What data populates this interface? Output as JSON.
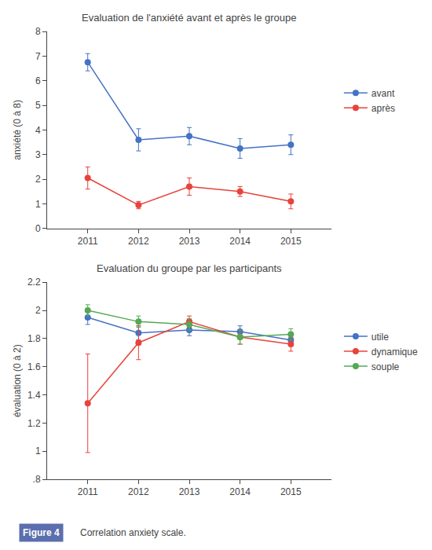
{
  "chart_data": [
    {
      "type": "line",
      "title": "Evaluation de l'anxiété avant et après le groupe",
      "y_label": "anxiété (0 à 8)",
      "x": [
        2011,
        2012,
        2013,
        2014,
        2015
      ],
      "series": [
        {
          "name": "avant",
          "color": "#4472C4",
          "marker": "circle",
          "values": [
            6.75,
            3.6,
            3.75,
            3.25,
            3.4
          ],
          "errors": [
            0.35,
            0.45,
            0.35,
            0.4,
            0.4
          ]
        },
        {
          "name": "après",
          "color": "#E8433A",
          "marker": "circle",
          "values": [
            2.05,
            0.95,
            1.7,
            1.5,
            1.1
          ],
          "errors": [
            0.45,
            0.15,
            0.35,
            0.2,
            0.3
          ]
        }
      ],
      "xlim": [
        2010.2,
        2015.8
      ],
      "xticks": [
        2011,
        2012,
        2013,
        2014,
        2015
      ],
      "ylim": [
        0,
        8
      ],
      "yticks": [
        0,
        1,
        2,
        3,
        4,
        5,
        6,
        7,
        8
      ],
      "grid": false,
      "legend": "right"
    },
    {
      "type": "line",
      "title": "Evaluation du groupe par les participants",
      "y_label": "évaluation (0 à 2)",
      "x": [
        2011,
        2012,
        2013,
        2014,
        2015
      ],
      "series": [
        {
          "name": "utile",
          "color": "#4472C4",
          "marker": "circle",
          "values": [
            1.95,
            1.84,
            1.86,
            1.85,
            1.79
          ],
          "errors": [
            0.05,
            0.05,
            0.04,
            0.04,
            0.04
          ]
        },
        {
          "name": "dynamique",
          "color": "#E8433A",
          "marker": "circle",
          "values": [
            1.34,
            1.77,
            1.92,
            1.81,
            1.76
          ],
          "errors": [
            0.35,
            0.12,
            0.04,
            0.05,
            0.05
          ]
        },
        {
          "name": "souple",
          "color": "#55A855",
          "marker": "circle",
          "values": [
            2.0,
            1.92,
            1.9,
            1.81,
            1.83
          ],
          "errors": [
            0.04,
            0.04,
            0.04,
            0.05,
            0.04
          ]
        }
      ],
      "xlim": [
        2010.2,
        2015.8
      ],
      "xticks": [
        2011,
        2012,
        2013,
        2014,
        2015
      ],
      "ylim": [
        0.8,
        2.2
      ],
      "yticks": [
        {
          "value": 0.8,
          "label": ".8"
        },
        1,
        1.2,
        1.4,
        1.6,
        1.8,
        2,
        2.2
      ],
      "grid": false,
      "legend": "right",
      "annotations": [
        {
          "text": "Figure 4",
          "color": "#5B6FAE"
        },
        {
          "text": "Correlation anxiety scale."
        }
      ]
    }
  ]
}
